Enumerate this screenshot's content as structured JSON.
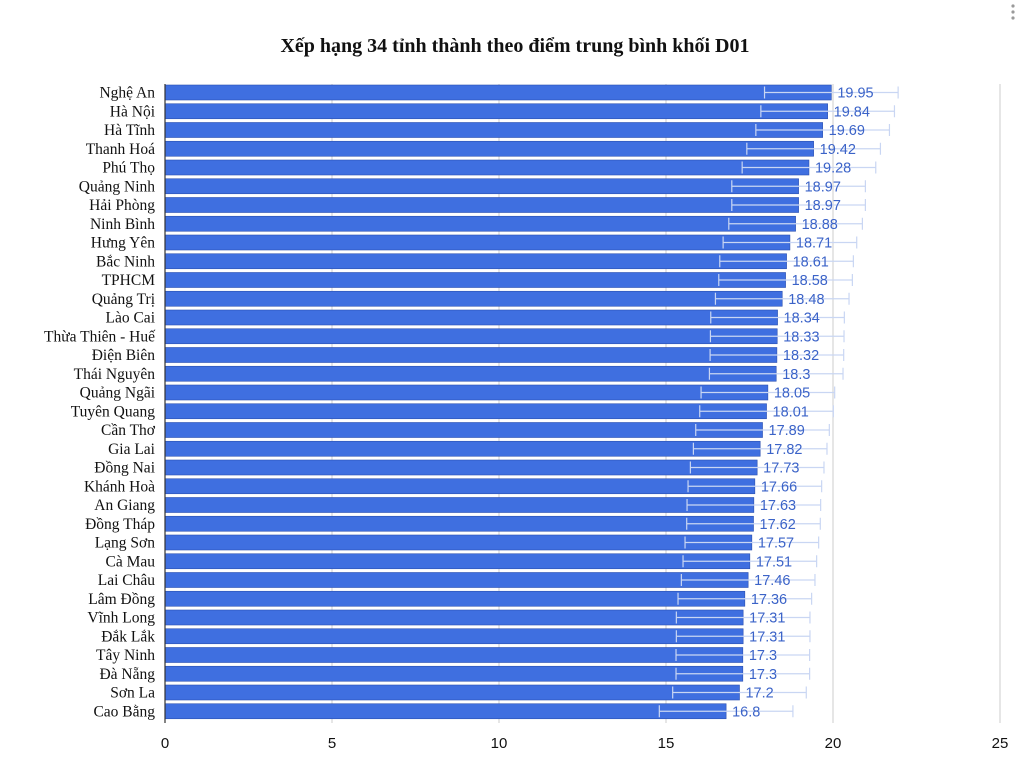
{
  "chart_data": {
    "type": "bar",
    "orientation": "horizontal",
    "title": "Xếp hạng 34 tỉnh thành theo điểm trung bình khối D01",
    "categories": [
      "Nghệ An",
      "Hà Nội",
      "Hà Tĩnh",
      "Thanh Hoá",
      "Phú Thọ",
      "Quảng Ninh",
      "Hải Phòng",
      "Ninh Bình",
      "Hưng Yên",
      "Bắc Ninh",
      "TPHCM",
      "Quảng Trị",
      "Lào Cai",
      "Thừa Thiên - Huế",
      "Điện Biên",
      "Thái Nguyên",
      "Quảng Ngãi",
      "Tuyên Quang",
      "Cần Thơ",
      "Gia Lai",
      "Đồng Nai",
      "Khánh Hoà",
      "An Giang",
      "Đồng Tháp",
      "Lạng Sơn",
      "Cà Mau",
      "Lai Châu",
      "Lâm Đồng",
      "Vĩnh Long",
      "Đắk Lắk",
      "Tây Ninh",
      "Đà Nẵng",
      "Sơn La",
      "Cao Bằng"
    ],
    "values": [
      19.95,
      19.84,
      19.69,
      19.42,
      19.28,
      18.97,
      18.97,
      18.88,
      18.71,
      18.61,
      18.58,
      18.48,
      18.34,
      18.33,
      18.32,
      18.3,
      18.05,
      18.01,
      17.89,
      17.82,
      17.73,
      17.66,
      17.63,
      17.62,
      17.57,
      17.51,
      17.46,
      17.36,
      17.31,
      17.31,
      17.3,
      17.3,
      17.2,
      16.8
    ],
    "value_labels": [
      "19.95",
      "19.84",
      "19.69",
      "19.42",
      "19.28",
      "18.97",
      "18.97",
      "18.88",
      "18.71",
      "18.61",
      "18.58",
      "18.48",
      "18.34",
      "18.33",
      "18.32",
      "18.3",
      "18.05",
      "18.01",
      "17.89",
      "17.82",
      "17.73",
      "17.66",
      "17.63",
      "17.62",
      "17.57",
      "17.51",
      "17.46",
      "17.36",
      "17.31",
      "17.31",
      "17.3",
      "17.3",
      "17.2",
      "16.8"
    ],
    "error_bar_half_width": 2,
    "xlim": [
      0,
      25
    ],
    "x_ticks": [
      "0",
      "5",
      "10",
      "15",
      "20",
      "25"
    ],
    "grid": true,
    "legend": "none",
    "bar_color": "#3f6fe0",
    "bar_edge_color": "#2a4fb0",
    "label_color": "#3b63c8",
    "gridline_color": "#cccccc"
  }
}
